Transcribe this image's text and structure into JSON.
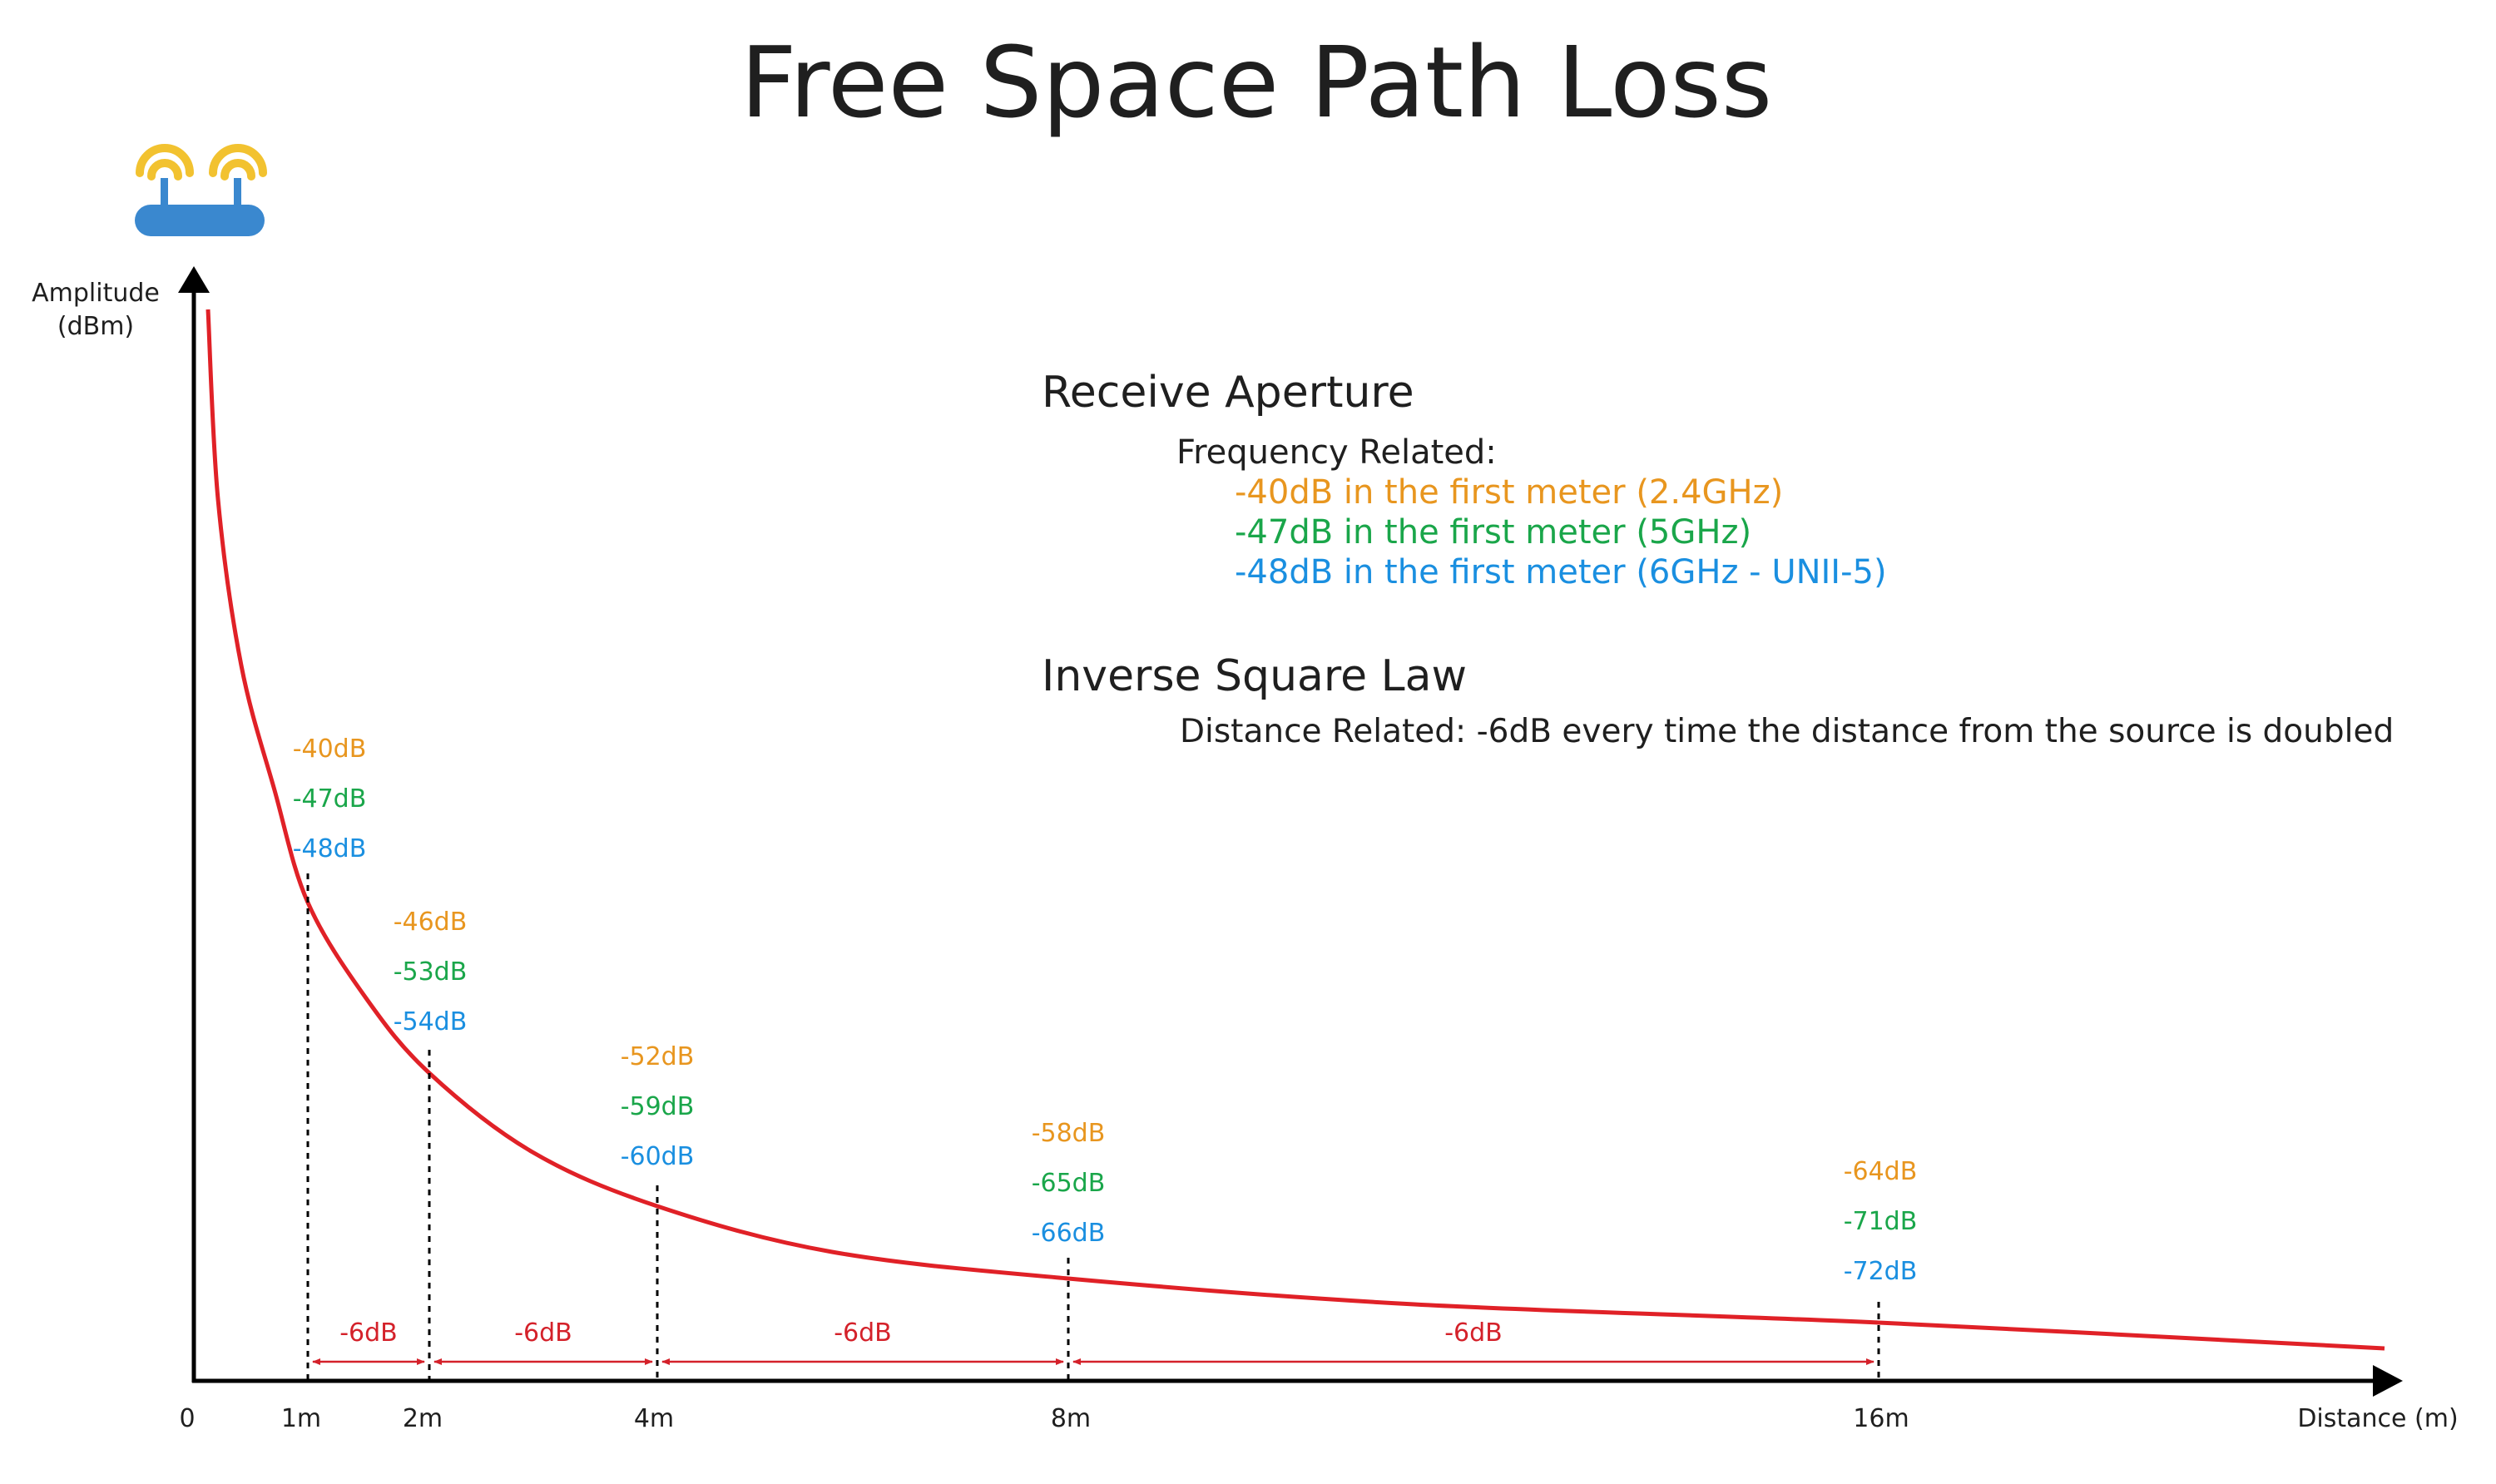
{
  "title": "Free Space Path Loss",
  "y_axis": {
    "label_line1": "Amplitude",
    "label_line2": "(dBm)"
  },
  "x_axis": {
    "label": "Distance (m)",
    "origin_label": "0"
  },
  "icons": {
    "source": "router-icon"
  },
  "colors": {
    "curve": "#e02127",
    "band_24": "#e8961f",
    "band_5": "#1aa64a",
    "band_6": "#1a8fe0",
    "annotation": "#d4212a",
    "text": "#1f1f1f"
  },
  "info": {
    "receive_aperture": {
      "heading": "Receive Aperture",
      "subheading": "Frequency Related:",
      "lines": [
        "-40dB in the first meter (2.4GHz)",
        "-47dB in the first meter (5GHz)",
        "-48dB in the first meter (6GHz - UNII-5)"
      ]
    },
    "inverse_square": {
      "heading": "Inverse Square Law",
      "subheading": "Distance Related: -6dB every time the distance from the source is doubled"
    }
  },
  "segment_label": "-6dB",
  "chart_data": {
    "type": "line",
    "x_label": "Distance (m)",
    "y_label": "Amplitude (dBm)",
    "distance_ticks": [
      "1m",
      "2m",
      "4m",
      "8m",
      "16m"
    ],
    "distances_m": [
      1,
      2,
      4,
      8,
      16
    ],
    "series": [
      {
        "name": "2.4GHz",
        "values": [
          -40,
          -46,
          -52,
          -58,
          -64
        ],
        "labels": [
          "-40dB",
          "-46dB",
          "-52dB",
          "-58dB",
          "-64dB"
        ]
      },
      {
        "name": "5GHz",
        "values": [
          -47,
          -53,
          -59,
          -65,
          -71
        ],
        "labels": [
          "-47dB",
          "-53dB",
          "-59dB",
          "-65dB",
          "-71dB"
        ]
      },
      {
        "name": "6GHz - UNII-5",
        "values": [
          -48,
          -54,
          -60,
          -66,
          -72
        ],
        "labels": [
          "-48dB",
          "-54dB",
          "-60dB",
          "-66dB",
          "-72dB"
        ]
      }
    ],
    "step_per_doubling_db": -6
  }
}
